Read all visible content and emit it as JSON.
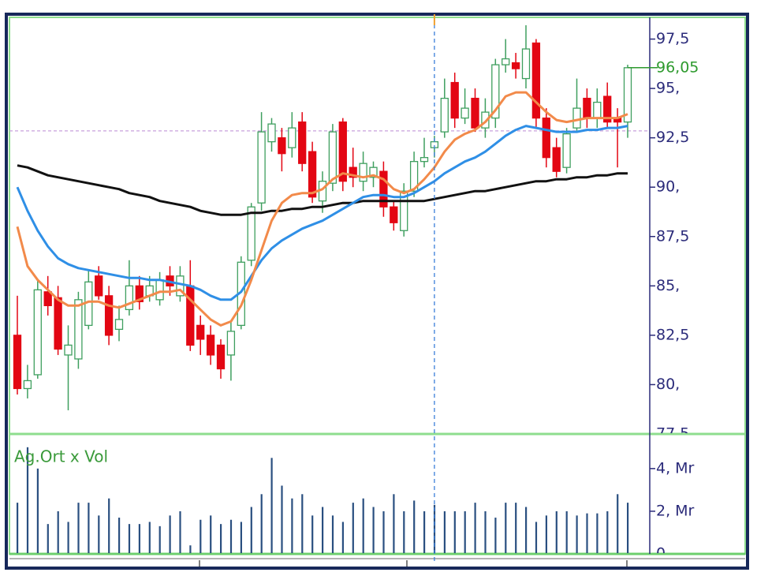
{
  "chart_data": [
    {
      "type": "candlestick",
      "open": [
        82.5,
        79.8,
        80.5,
        84.7,
        84.4,
        81.5,
        81.3,
        83.0,
        85.5,
        84.5,
        82.8,
        83.8,
        85.0,
        84.5,
        84.3,
        85.5,
        84.5,
        85.0,
        83.0,
        82.5,
        82.0,
        81.5,
        83.0,
        86.3,
        89.2,
        92.3,
        92.5,
        92.0,
        93.3,
        91.8,
        89.3,
        90.2,
        93.3,
        91.0,
        90.3,
        90.5,
        90.8,
        89.0,
        87.8,
        89.8,
        91.3,
        92.0,
        92.8,
        95.3,
        93.5,
        94.5,
        93.0,
        93.5,
        96.2,
        96.3,
        95.5,
        97.3,
        93.5,
        92.0,
        91.0,
        93.0,
        94.5,
        93.5,
        94.6,
        93.5,
        93.3
      ],
      "high": [
        84.5,
        81.0,
        85.3,
        85.5,
        85.0,
        83.0,
        84.7,
        85.8,
        86.0,
        85.0,
        84.0,
        86.3,
        85.5,
        85.5,
        85.7,
        86.0,
        86.0,
        86.3,
        83.5,
        83.0,
        82.3,
        83.2,
        86.5,
        89.2,
        93.8,
        93.5,
        93.0,
        93.8,
        93.8,
        92.3,
        90.8,
        93.2,
        93.5,
        92.0,
        91.8,
        91.3,
        91.3,
        89.3,
        90.2,
        91.8,
        92.5,
        92.6,
        95.5,
        95.8,
        95.0,
        95.0,
        94.5,
        96.5,
        97.5,
        96.8,
        98.2,
        97.5,
        94.0,
        92.5,
        93.0,
        95.5,
        95.0,
        95.0,
        95.3,
        94.0,
        96.2
      ],
      "low": [
        79.5,
        79.3,
        80.3,
        83.5,
        81.5,
        78.7,
        80.8,
        82.8,
        84.3,
        82.0,
        82.2,
        83.5,
        83.8,
        84.2,
        84.0,
        84.5,
        84.2,
        81.7,
        81.5,
        81.0,
        80.3,
        80.2,
        82.8,
        86.0,
        88.8,
        91.8,
        90.8,
        91.5,
        90.8,
        89.2,
        88.7,
        89.8,
        89.8,
        90.0,
        89.8,
        90.0,
        88.5,
        87.8,
        87.5,
        89.5,
        91.0,
        91.5,
        92.5,
        93.0,
        93.2,
        92.8,
        92.5,
        93.0,
        95.8,
        95.5,
        95.0,
        93.0,
        91.0,
        90.5,
        90.7,
        92.8,
        93.0,
        93.0,
        93.0,
        91.0,
        92.5
      ],
      "close": [
        79.8,
        80.2,
        84.8,
        84.0,
        81.8,
        82.0,
        84.3,
        85.2,
        84.5,
        82.5,
        83.3,
        85.0,
        84.2,
        85.0,
        85.3,
        85.0,
        85.5,
        82.0,
        82.3,
        81.5,
        80.8,
        82.7,
        86.2,
        89.0,
        92.8,
        93.2,
        91.7,
        93.0,
        91.2,
        89.5,
        90.3,
        92.8,
        90.3,
        90.5,
        91.2,
        91.0,
        89.0,
        88.2,
        89.8,
        91.3,
        91.5,
        92.3,
        94.5,
        93.5,
        94.0,
        93.0,
        93.8,
        96.2,
        96.5,
        96.0,
        97.0,
        93.5,
        91.5,
        90.8,
        92.7,
        94.0,
        93.5,
        94.3,
        93.3,
        93.3,
        96.05
      ],
      "up_color": "#3f9f5f",
      "down_color": "#e30613",
      "lines": [
        {
          "color": "#111111",
          "values": [
            91.1,
            91.0,
            90.8,
            90.6,
            90.5,
            90.4,
            90.3,
            90.2,
            90.1,
            90.0,
            89.9,
            89.7,
            89.6,
            89.5,
            89.3,
            89.2,
            89.1,
            89.0,
            88.8,
            88.7,
            88.6,
            88.6,
            88.6,
            88.7,
            88.7,
            88.8,
            88.8,
            88.9,
            88.9,
            89.0,
            89.0,
            89.1,
            89.2,
            89.2,
            89.3,
            89.3,
            89.3,
            89.3,
            89.3,
            89.3,
            89.3,
            89.4,
            89.5,
            89.6,
            89.7,
            89.8,
            89.8,
            89.9,
            90.0,
            90.1,
            90.2,
            90.3,
            90.3,
            90.4,
            90.4,
            90.5,
            90.5,
            90.6,
            90.6,
            90.7,
            90.7
          ]
        },
        {
          "color": "#2f8fe6",
          "values": [
            90.0,
            88.8,
            87.8,
            87.0,
            86.4,
            86.1,
            85.9,
            85.8,
            85.7,
            85.6,
            85.5,
            85.4,
            85.4,
            85.3,
            85.3,
            85.2,
            85.1,
            85.0,
            84.8,
            84.5,
            84.3,
            84.3,
            84.7,
            85.5,
            86.3,
            86.9,
            87.3,
            87.6,
            87.9,
            88.1,
            88.3,
            88.6,
            88.9,
            89.2,
            89.5,
            89.6,
            89.6,
            89.5,
            89.5,
            89.7,
            90.0,
            90.3,
            90.7,
            91.0,
            91.3,
            91.5,
            91.8,
            92.2,
            92.6,
            92.9,
            93.1,
            93.0,
            92.9,
            92.8,
            92.8,
            92.8,
            92.9,
            92.9,
            93.0,
            93.0,
            93.1
          ]
        },
        {
          "color": "#f28a4a",
          "values": [
            88.0,
            86.0,
            85.3,
            84.8,
            84.3,
            84.0,
            84.0,
            84.2,
            84.2,
            84.0,
            83.9,
            84.1,
            84.3,
            84.5,
            84.7,
            84.7,
            84.8,
            84.3,
            83.8,
            83.3,
            83.0,
            83.2,
            84.0,
            85.3,
            86.8,
            88.3,
            89.2,
            89.6,
            89.7,
            89.7,
            89.9,
            90.4,
            90.7,
            90.6,
            90.5,
            90.6,
            90.4,
            89.9,
            89.7,
            89.9,
            90.4,
            91.0,
            91.8,
            92.4,
            92.7,
            92.9,
            93.3,
            93.9,
            94.6,
            94.8,
            94.8,
            94.3,
            93.8,
            93.4,
            93.3,
            93.4,
            93.5,
            93.5,
            93.5,
            93.5,
            93.7
          ]
        }
      ],
      "ylim": [
        77.5,
        98.6
      ],
      "yticks": [
        {
          "value": 97.5,
          "label": "97,5"
        },
        {
          "value": 95,
          "label": "95,"
        },
        {
          "value": 92.5,
          "label": "92,5"
        },
        {
          "value": 90,
          "label": "90,"
        },
        {
          "value": 87.5,
          "label": "87,5"
        },
        {
          "value": 85,
          "label": "85,"
        },
        {
          "value": 82.5,
          "label": "82,5"
        },
        {
          "value": 80,
          "label": "80,"
        },
        {
          "value": 77.5,
          "label": "77,5"
        }
      ],
      "last_price": 96.05,
      "last_price_label": "96,05",
      "last_price_color": "#2e9a2e",
      "reference_line": 92.85,
      "crosshair_index": 41
    },
    {
      "type": "bar",
      "title": "Ag.Ort x Vol",
      "color": "#2a4f80",
      "values": [
        2.4,
        5.0,
        4.0,
        1.4,
        2.0,
        1.5,
        2.4,
        2.4,
        1.8,
        2.6,
        1.7,
        1.4,
        1.4,
        1.5,
        1.3,
        1.8,
        2.0,
        0.4,
        1.6,
        1.8,
        1.4,
        1.6,
        1.5,
        2.2,
        2.8,
        4.5,
        3.2,
        2.6,
        2.8,
        1.8,
        2.2,
        1.8,
        1.5,
        2.4,
        2.6,
        2.2,
        2.0,
        2.8,
        2.0,
        2.5,
        2.0,
        2.3,
        2.0,
        2.0,
        2.0,
        2.4,
        2.0,
        1.7,
        2.4,
        2.4,
        2.2,
        1.5,
        1.8,
        2.0,
        2.0,
        1.8,
        1.9,
        1.9,
        2.0,
        2.8,
        2.4
      ],
      "ylim": [
        0,
        5.4
      ],
      "yticks": [
        {
          "value": 4,
          "label": "4, Mr"
        },
        {
          "value": 2,
          "label": "2, Mr"
        },
        0
      ]
    }
  ]
}
